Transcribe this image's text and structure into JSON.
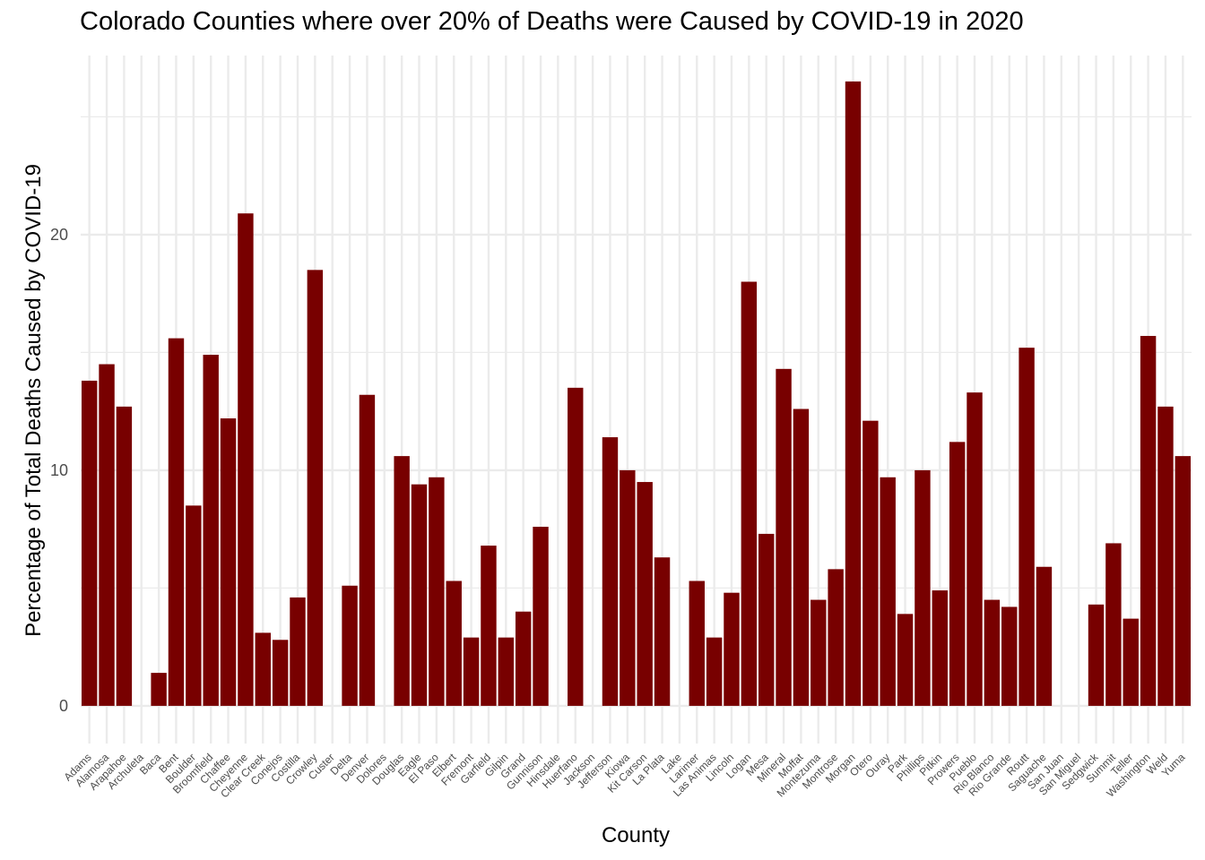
{
  "chart_data": {
    "type": "bar",
    "title": "Colorado Counties where over 20% of Deaths were Caused by COVID-19 in 2020",
    "xlabel": "County",
    "ylabel": "Percentage of Total Deaths Caused by COVID-19",
    "ylim": [
      -1.6,
      27.6
    ],
    "yticks": [
      0,
      10,
      20
    ],
    "grid": true,
    "bar_color": "#780000",
    "categories": [
      "Adams",
      "Alamosa",
      "Arapahoe",
      "Archuleta",
      "Baca",
      "Bent",
      "Boulder",
      "Broomfield",
      "Chaffee",
      "Cheyenne",
      "Clear Creek",
      "Conejos",
      "Costilla",
      "Crowley",
      "Custer",
      "Delta",
      "Denver",
      "Dolores",
      "Douglas",
      "Eagle",
      "El Paso",
      "Elbert",
      "Fremont",
      "Garfield",
      "Gilpin",
      "Grand",
      "Gunnison",
      "Hinsdale",
      "Huerfano",
      "Jackson",
      "Jefferson",
      "Kiowa",
      "Kit Carson",
      "La Plata",
      "Lake",
      "Larimer",
      "Las Animas",
      "Lincoln",
      "Logan",
      "Mesa",
      "Mineral",
      "Moffat",
      "Montezuma",
      "Montrose",
      "Morgan",
      "Otero",
      "Ouray",
      "Park",
      "Phillips",
      "Pitkin",
      "Prowers",
      "Pueblo",
      "Rio Blanco",
      "Rio Grande",
      "Routt",
      "Saguache",
      "San Juan",
      "San Miguel",
      "Sedgwick",
      "Summit",
      "Teller",
      "Washington",
      "Weld",
      "Yuma"
    ],
    "values": [
      13.8,
      14.5,
      12.7,
      0,
      1.4,
      15.6,
      8.5,
      14.9,
      12.2,
      20.9,
      3.1,
      2.8,
      4.6,
      18.5,
      0,
      5.1,
      13.2,
      0,
      10.6,
      9.4,
      9.7,
      5.3,
      2.9,
      6.8,
      2.9,
      4.0,
      7.6,
      0,
      13.5,
      0,
      11.4,
      10.0,
      9.5,
      6.3,
      0,
      5.3,
      2.9,
      4.8,
      18.0,
      7.3,
      14.3,
      12.6,
      4.5,
      5.8,
      26.5,
      12.1,
      9.7,
      3.9,
      10.0,
      4.9,
      11.2,
      13.3,
      4.5,
      4.2,
      15.2,
      5.9,
      0,
      0,
      4.3,
      6.9,
      3.7,
      15.7,
      12.7,
      10.6
    ]
  }
}
